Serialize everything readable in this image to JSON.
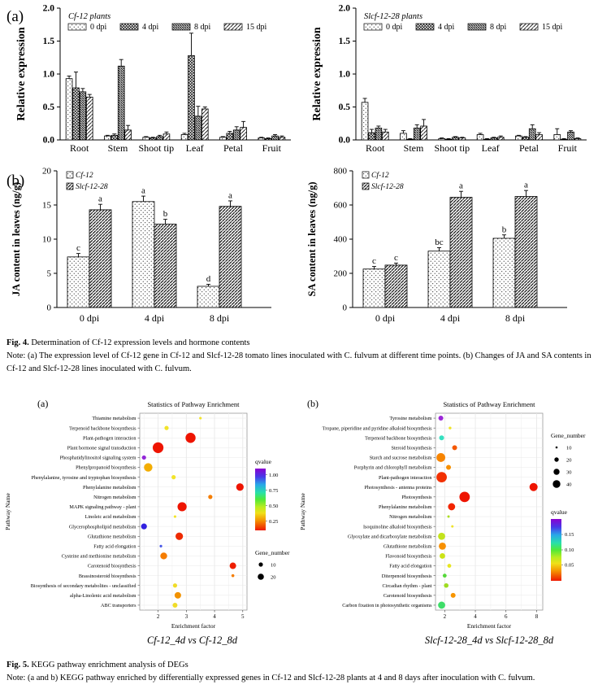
{
  "fig4": {
    "panel_a_label": "(a)",
    "panel_b_label": "(b)",
    "caption_label": "Fig. 4.",
    "caption_title": "Determination of Cf-12 expression levels and hormone contents",
    "caption_note": "Note: (a) The expression level of Cf-12 gene in Cf-12 and Slcf-12-28 tomato lines inoculated with C. fulvum at different time points. (b) Changes of JA and SA contents in Cf-12 and Slcf-12-28 lines inoculated with C. fulvum."
  },
  "fig5": {
    "panel_a_label": "(a)",
    "panel_b_label": "(b)",
    "left_comparison": "Cf-12_4d vs Cf-12_8d",
    "right_comparison": "Slcf-12-28_4d vs Slcf-12-28_8d",
    "caption_label": "Fig. 5.",
    "caption_title": "KEGG pathway enrichment analysis of DEGs",
    "caption_note": "Note: (a and b) KEGG pathway enriched by differentially expressed genes in Cf-12 and Slcf-12-28 plants at 4 and 8 days after inoculation with C. fulvum."
  },
  "chart_data": [
    {
      "id": "expr_cf12",
      "type": "bar",
      "title": "Cf-12 plants",
      "ylabel": "Relative expression",
      "ylim": [
        0,
        2.0
      ],
      "yticks": [
        "0.0",
        "0.5",
        "1.0",
        "1.5",
        "2.0"
      ],
      "categories": [
        "Root",
        "Stem",
        "Shoot tip",
        "Leaf",
        "Petal",
        "Fruit"
      ],
      "series": [
        {
          "name": "0 dpi",
          "pattern": "dots",
          "values": [
            0.93,
            0.06,
            0.04,
            0.08,
            0.04,
            0.03
          ],
          "errors": [
            0.04,
            0.01,
            0.01,
            0.02,
            0.01,
            0.01
          ]
        },
        {
          "name": "4 dpi",
          "pattern": "cross",
          "values": [
            0.79,
            0.07,
            0.03,
            1.28,
            0.1,
            0.02
          ],
          "errors": [
            0.24,
            0.02,
            0.01,
            0.34,
            0.03,
            0.01
          ]
        },
        {
          "name": "8 dpi",
          "pattern": "diag-dense",
          "values": [
            0.73,
            1.12,
            0.05,
            0.36,
            0.15,
            0.06
          ],
          "errors": [
            0.05,
            0.1,
            0.02,
            0.15,
            0.05,
            0.02
          ]
        },
        {
          "name": "15 dpi",
          "pattern": "diag-light",
          "values": [
            0.65,
            0.15,
            0.09,
            0.47,
            0.19,
            0.04
          ],
          "errors": [
            0.04,
            0.07,
            0.03,
            0.03,
            0.09,
            0.02
          ]
        }
      ]
    },
    {
      "id": "expr_slcf",
      "type": "bar",
      "title": "Slcf-12-28 plants",
      "ylabel": "Relative expression",
      "ylim": [
        0,
        2.0
      ],
      "yticks": [
        "0.0",
        "0.5",
        "1.0",
        "1.5",
        "2.0"
      ],
      "categories": [
        "Root",
        "Stem",
        "Shoot tip",
        "Leaf",
        "Petal",
        "Fruit"
      ],
      "series": [
        {
          "name": "0 dpi",
          "pattern": "dots",
          "values": [
            0.57,
            0.1,
            0.02,
            0.08,
            0.06,
            0.08
          ],
          "errors": [
            0.06,
            0.04,
            0.01,
            0.02,
            0.01,
            0.09
          ]
        },
        {
          "name": "4 dpi",
          "pattern": "cross",
          "values": [
            0.11,
            0.01,
            0.01,
            0.01,
            0.04,
            0.01
          ],
          "errors": [
            0.05,
            0.01,
            0.01,
            0.01,
            0.01,
            0.01
          ]
        },
        {
          "name": "8 dpi",
          "pattern": "diag-dense",
          "values": [
            0.18,
            0.18,
            0.04,
            0.03,
            0.17,
            0.12
          ],
          "errors": [
            0.03,
            0.05,
            0.01,
            0.01,
            0.06,
            0.02
          ]
        },
        {
          "name": "15 dpi",
          "pattern": "diag-light",
          "values": [
            0.12,
            0.21,
            0.03,
            0.04,
            0.08,
            0.02
          ],
          "errors": [
            0.04,
            0.1,
            0.01,
            0.02,
            0.03,
            0.01
          ]
        }
      ]
    },
    {
      "id": "ja",
      "type": "bar",
      "ylabel": "JA content in leaves (ng/g)",
      "ylim": [
        0,
        20
      ],
      "yticks": [
        "0",
        "5",
        "10",
        "15",
        "20"
      ],
      "categories": [
        "0 dpi",
        "4 dpi",
        "8 dpi"
      ],
      "series": [
        {
          "name": "Cf-12",
          "pattern": "dots",
          "values": [
            7.4,
            15.5,
            3.1
          ],
          "errors": [
            0.5,
            0.8,
            0.3
          ],
          "letters": [
            "c",
            "a",
            "d"
          ]
        },
        {
          "name": "Slcf-12-28",
          "pattern": "diag-med",
          "values": [
            14.3,
            12.2,
            14.8
          ],
          "errors": [
            0.8,
            0.7,
            0.8
          ],
          "letters": [
            "a",
            "b",
            "a"
          ]
        }
      ]
    },
    {
      "id": "sa",
      "type": "bar",
      "ylabel": "SA content in leaves (ng/g)",
      "ylim": [
        0,
        800
      ],
      "yticks": [
        "0",
        "200",
        "400",
        "600",
        "800"
      ],
      "categories": [
        "0 dpi",
        "4 dpi",
        "8 dpi"
      ],
      "series": [
        {
          "name": "Cf-12",
          "pattern": "dots",
          "values": [
            225,
            330,
            405
          ],
          "errors": [
            15,
            20,
            20
          ],
          "letters": [
            "c",
            "bc",
            "b"
          ]
        },
        {
          "name": "Slcf-12-28",
          "pattern": "diag-med",
          "values": [
            248,
            645,
            650
          ],
          "errors": [
            12,
            35,
            35
          ],
          "letters": [
            "c",
            "a",
            "a"
          ]
        }
      ]
    },
    {
      "id": "kegg_a",
      "type": "scatter",
      "title": "Statistics of Pathway Enrichment",
      "xlabel": "Enrichment factor",
      "ylabel": "Pathway Name",
      "xlim": [
        1.35,
        5.15
      ],
      "xticks": [
        2,
        3,
        4,
        5
      ],
      "legend": {
        "order": [
          "qvalue",
          "gene"
        ],
        "qvalue_title": "qvalue",
        "gene_title": "Gene_number",
        "qvalue_ticks": [
          {
            "label": "1.00",
            "f": 0.1
          },
          {
            "label": "0.75",
            "f": 0.35
          },
          {
            "label": "0.50",
            "f": 0.6
          },
          {
            "label": "0.25",
            "f": 0.85
          }
        ],
        "gene_items": [
          {
            "label": "10",
            "r": 2.6
          },
          {
            "label": "20",
            "r": 3.8
          }
        ]
      },
      "rows": [
        {
          "label": "Thiamine metabolism",
          "x": 3.5,
          "r": 1.6,
          "color": "#f2e42a"
        },
        {
          "label": "Terpenoid backbone biosynthesis",
          "x": 2.3,
          "r": 2.6,
          "color": "#f2e42a"
        },
        {
          "label": "Plant-pathogen interaction",
          "x": 3.15,
          "r": 6.2,
          "color": "#ee1400"
        },
        {
          "label": "Plant hormone signal transduction",
          "x": 2.0,
          "r": 6.6,
          "color": "#ee1400"
        },
        {
          "label": "Phosphatidylinositol signaling system",
          "x": 1.5,
          "r": 2.6,
          "color": "#9327d8"
        },
        {
          "label": "Phenylpropanoid biosynthesis",
          "x": 1.65,
          "r": 5.2,
          "color": "#f3ad00"
        },
        {
          "label": "Phenylalanine, tyrosine and tryptophan biosynthesis",
          "x": 2.55,
          "r": 2.6,
          "color": "#f2e42a"
        },
        {
          "label": "Phenylalanine metabolism",
          "x": 4.9,
          "r": 4.6,
          "color": "#ee1400"
        },
        {
          "label": "Nitrogen metabolism",
          "x": 3.85,
          "r": 2.6,
          "color": "#f57d00"
        },
        {
          "label": "MAPK signaling pathway - plant",
          "x": 2.85,
          "r": 5.6,
          "color": "#ee1400"
        },
        {
          "label": "Linoleic acid metabolism",
          "x": 2.6,
          "r": 1.6,
          "color": "#f2e42a"
        },
        {
          "label": "Glycerophospholipid metabolism",
          "x": 1.5,
          "r": 3.6,
          "color": "#3222e0"
        },
        {
          "label": "Glutathione metabolism",
          "x": 2.75,
          "r": 4.6,
          "color": "#ee2a00"
        },
        {
          "label": "Fatty acid elongation",
          "x": 2.1,
          "r": 1.6,
          "color": "#4a5ae8"
        },
        {
          "label": "Cysteine and methionine metabolism",
          "x": 2.2,
          "r": 4.2,
          "color": "#f57d00"
        },
        {
          "label": "Carotenoid biosynthesis",
          "x": 4.65,
          "r": 4.0,
          "color": "#ee1e00"
        },
        {
          "label": "Brassinosteroid biosynthesis",
          "x": 4.65,
          "r": 1.8,
          "color": "#f57d00"
        },
        {
          "label": "Biosynthesis of secondary metabolites - unclassified",
          "x": 2.6,
          "r": 2.6,
          "color": "#f0dc28"
        },
        {
          "label": "alpha-Linolenic acid metabolism",
          "x": 2.7,
          "r": 4.0,
          "color": "#f29200"
        },
        {
          "label": "ABC transporters",
          "x": 2.6,
          "r": 3.0,
          "color": "#f0dc28"
        }
      ]
    },
    {
      "id": "kegg_b",
      "type": "scatter",
      "title": "Statistics of Pathway Enrichment",
      "xlabel": "Enrichment factor",
      "ylabel": "Pathway Name",
      "xlim": [
        1.4,
        8.4
      ],
      "xticks": [
        2,
        4,
        6,
        8
      ],
      "legend": {
        "order": [
          "gene",
          "qvalue"
        ],
        "qvalue_title": "qvalue",
        "gene_title": "Gene_number",
        "qvalue_ticks": [
          {
            "label": "0.15",
            "f": 0.25
          },
          {
            "label": "0.10",
            "f": 0.5
          },
          {
            "label": "0.05",
            "f": 0.74
          }
        ],
        "gene_items": [
          {
            "label": "10",
            "r": 1.3
          },
          {
            "label": "20",
            "r": 2.7
          },
          {
            "label": "30",
            "r": 3.7
          },
          {
            "label": "40",
            "r": 4.7
          }
        ]
      },
      "rows": [
        {
          "label": "Tyrosine metabolism",
          "x": 1.75,
          "r": 3.0,
          "color": "#9b27d8"
        },
        {
          "label": "Tropane, piperidine and pyridine alkaloid biosynthesis",
          "x": 2.35,
          "r": 1.7,
          "color": "#f0e428"
        },
        {
          "label": "Terpenoid backbone biosynthesis",
          "x": 1.8,
          "r": 3.0,
          "color": "#35e0c0"
        },
        {
          "label": "Steroid biosynthesis",
          "x": 2.65,
          "r": 3.0,
          "color": "#f55800"
        },
        {
          "label": "Starch and sucrose metabolism",
          "x": 1.75,
          "r": 5.4,
          "color": "#f78400"
        },
        {
          "label": "Porphyrin and chlorophyll metabolism",
          "x": 2.25,
          "r": 3.0,
          "color": "#f79000"
        },
        {
          "label": "Plant-pathogen interaction",
          "x": 1.8,
          "r": 6.4,
          "color": "#f23000"
        },
        {
          "label": "Photosynthesis - antenna proteins",
          "x": 7.8,
          "r": 5.0,
          "color": "#ee1400"
        },
        {
          "label": "Photosynthesis",
          "x": 3.3,
          "r": 6.4,
          "color": "#ee1400"
        },
        {
          "label": "Phenylalanine metabolism",
          "x": 2.45,
          "r": 4.4,
          "color": "#f22500"
        },
        {
          "label": "Nitrogen metabolism",
          "x": 2.25,
          "r": 1.5,
          "color": "#aadc20"
        },
        {
          "label": "Isoquinoline alkaloid biosynthesis",
          "x": 2.5,
          "r": 1.5,
          "color": "#f0e428"
        },
        {
          "label": "Glyoxylate and dicarboxylate metabolism",
          "x": 1.8,
          "r": 4.4,
          "color": "#c3e31c"
        },
        {
          "label": "Glutathione metabolism",
          "x": 1.85,
          "r": 4.4,
          "color": "#f79000"
        },
        {
          "label": "Flavonoid biosynthesis",
          "x": 1.85,
          "r": 3.4,
          "color": "#cce315"
        },
        {
          "label": "Fatty acid elongation",
          "x": 2.3,
          "r": 2.4,
          "color": "#e8e620"
        },
        {
          "label": "Diterpenoid biosynthesis",
          "x": 2.0,
          "r": 2.4,
          "color": "#55d83a"
        },
        {
          "label": "Circadian rhythm - plant",
          "x": 2.1,
          "r": 2.8,
          "color": "#9edc20"
        },
        {
          "label": "Carotenoid biosynthesis",
          "x": 2.55,
          "r": 3.0,
          "color": "#f79500"
        },
        {
          "label": "Carbon fixation in photosynthetic organisms",
          "x": 1.8,
          "r": 4.4,
          "color": "#3edd68"
        }
      ]
    }
  ]
}
